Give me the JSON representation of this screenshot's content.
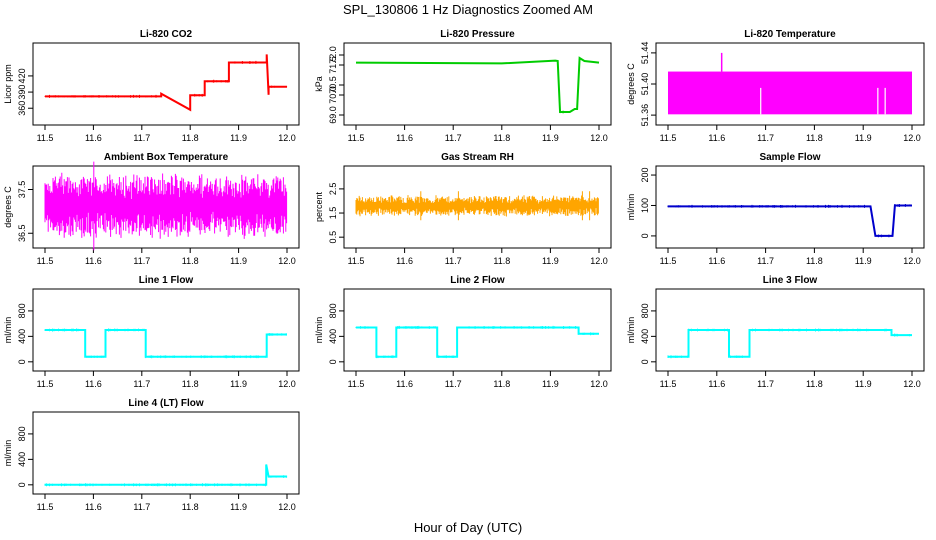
{
  "figure": {
    "title": "SPL_130806 1 Hz Diagnostics Zoomed AM",
    "xlabel": "Hour of Day (UTC)"
  },
  "chart_data": [
    {
      "type": "line",
      "title": "Li-820 CO2",
      "xlabel": "",
      "ylabel": "Licor ppm",
      "color": "#ff0000",
      "xlim": [
        11.5,
        12.0
      ],
      "ylim": [
        340,
        470
      ],
      "xticks": [
        "11.5",
        "11.6",
        "11.7",
        "11.8",
        "11.9",
        "12.0"
      ],
      "yticks": [
        "360",
        "390",
        "420"
      ],
      "series": [
        {
          "x": [
            11.5,
            11.74,
            11.74,
            11.8,
            11.8,
            11.83,
            11.83,
            11.88,
            11.88,
            11.958,
            11.958,
            11.962,
            11.962,
            12.0
          ],
          "y": [
            382,
            382,
            387,
            357,
            384,
            384,
            410,
            410,
            445,
            445,
            460,
            385,
            400,
            400
          ]
        }
      ]
    },
    {
      "type": "line",
      "title": "Li-820 Pressure",
      "xlabel": "",
      "ylabel": "kPa",
      "color": "#00cc00",
      "xlim": [
        11.5,
        12.0
      ],
      "ylim": [
        68.8,
        72.3
      ],
      "xticks": [
        "11.5",
        "11.6",
        "11.7",
        "11.8",
        "11.9",
        "12.0"
      ],
      "yticks": [
        "69.0",
        "70.0",
        "70.5",
        "71.5",
        "72.0"
      ],
      "series": [
        {
          "x": [
            11.5,
            11.8,
            11.91,
            11.915,
            11.92,
            11.92,
            11.94,
            11.95,
            11.955,
            11.96,
            11.97,
            12.0
          ],
          "y": [
            71.62,
            71.58,
            71.72,
            71.7,
            69.1,
            69.15,
            69.15,
            69.3,
            69.3,
            71.85,
            71.7,
            71.62
          ]
        }
      ]
    },
    {
      "type": "area",
      "title": "Li-820 Temperature",
      "xlabel": "",
      "ylabel": "degrees C",
      "color": "#ff00ff",
      "xlim": [
        11.5,
        12.0
      ],
      "ylim": [
        51.355,
        51.445
      ],
      "xticks": [
        "11.5",
        "11.6",
        "11.7",
        "11.8",
        "11.9",
        "12.0"
      ],
      "yticks": [
        "51.36",
        "51.40",
        "51.44"
      ],
      "series": [
        {
          "x": [
            11.5,
            11.7,
            11.9,
            12.0
          ],
          "y_low": [
            51.361,
            51.361,
            51.361,
            51.361
          ],
          "y_high": [
            51.416,
            51.416,
            51.416,
            51.416
          ]
        }
      ],
      "spikes": [
        {
          "x": 11.61,
          "y": 51.44
        }
      ]
    },
    {
      "type": "area",
      "title": "Ambient Box Temperature",
      "xlabel": "",
      "ylabel": "degrees C",
      "color": "#ff00ff",
      "xlim": [
        11.5,
        12.0
      ],
      "ylim": [
        36.3,
        37.9
      ],
      "xticks": [
        "11.5",
        "11.6",
        "11.7",
        "11.8",
        "11.9",
        "12.0"
      ],
      "yticks": [
        "36.5",
        "37.5"
      ],
      "series": [
        {
          "x": [
            11.5,
            11.75,
            12.0
          ],
          "y_low": [
            36.45,
            36.45,
            36.45
          ],
          "y_high": [
            37.8,
            37.8,
            37.8
          ]
        }
      ]
    },
    {
      "type": "area",
      "title": "Gas Stream RH",
      "xlabel": "",
      "ylabel": "percent",
      "color": "#ffa500",
      "xlim": [
        11.5,
        12.0
      ],
      "ylim": [
        0.3,
        3.2
      ],
      "xticks": [
        "11.5",
        "11.6",
        "11.7",
        "11.8",
        "11.9",
        "12.0"
      ],
      "yticks": [
        "0.5",
        "1.5",
        "2.5"
      ],
      "series": [
        {
          "x": [
            11.5,
            11.75,
            12.0
          ],
          "y_low": [
            1.4,
            1.4,
            1.4
          ],
          "y_high": [
            2.2,
            2.2,
            2.2
          ]
        }
      ]
    },
    {
      "type": "line",
      "title": "Sample Flow",
      "xlabel": "",
      "ylabel": "ml/min",
      "color": "#0000cc",
      "xlim": [
        11.5,
        12.0
      ],
      "ylim": [
        -20,
        210
      ],
      "xticks": [
        "11.5",
        "11.6",
        "11.7",
        "11.8",
        "11.9",
        "12.0"
      ],
      "yticks": [
        "0",
        "100",
        "200"
      ],
      "series": [
        {
          "x": [
            11.5,
            11.915,
            11.925,
            11.96,
            11.965,
            12.0
          ],
          "y": [
            97,
            97,
            0,
            0,
            100,
            100
          ]
        }
      ]
    },
    {
      "type": "line",
      "title": "Line 1 Flow",
      "xlabel": "",
      "ylabel": "ml/min",
      "color": "#00ffff",
      "xlim": [
        11.5,
        12.0
      ],
      "ylim": [
        -50,
        1050
      ],
      "xticks": [
        "11.5",
        "11.6",
        "11.7",
        "11.8",
        "11.9",
        "12.0"
      ],
      "yticks": [
        "0",
        "400",
        "800"
      ],
      "series": [
        {
          "x": [
            11.5,
            11.583,
            11.583,
            11.625,
            11.625,
            11.708,
            11.708,
            11.958,
            11.958,
            12.0
          ],
          "y": [
            500,
            500,
            80,
            80,
            500,
            500,
            80,
            80,
            430,
            430
          ]
        }
      ]
    },
    {
      "type": "line",
      "title": "Line 2 Flow",
      "xlabel": "",
      "ylabel": "ml/min",
      "color": "#00ffff",
      "xlim": [
        11.5,
        12.0
      ],
      "ylim": [
        -50,
        1050
      ],
      "xticks": [
        "11.5",
        "11.6",
        "11.7",
        "11.8",
        "11.9",
        "12.0"
      ],
      "yticks": [
        "0",
        "400",
        "800"
      ],
      "series": [
        {
          "x": [
            11.5,
            11.542,
            11.542,
            11.583,
            11.583,
            11.667,
            11.667,
            11.708,
            11.708,
            11.958,
            11.958,
            12.0
          ],
          "y": [
            540,
            540,
            80,
            80,
            540,
            540,
            80,
            80,
            540,
            540,
            440,
            440
          ]
        }
      ]
    },
    {
      "type": "line",
      "title": "Line 3 Flow",
      "xlabel": "",
      "ylabel": "ml/min",
      "color": "#00ffff",
      "xlim": [
        11.5,
        12.0
      ],
      "ylim": [
        -50,
        1050
      ],
      "xticks": [
        "11.5",
        "11.6",
        "11.7",
        "11.8",
        "11.9",
        "12.0"
      ],
      "yticks": [
        "0",
        "400",
        "800"
      ],
      "series": [
        {
          "x": [
            11.5,
            11.542,
            11.542,
            11.625,
            11.625,
            11.667,
            11.667,
            11.958,
            11.958,
            12.0
          ],
          "y": [
            80,
            80,
            500,
            500,
            80,
            80,
            500,
            500,
            420,
            420
          ]
        }
      ]
    },
    {
      "type": "line",
      "title": "Line 4 (LT) Flow",
      "xlabel": "",
      "ylabel": "ml/min",
      "color": "#00ffff",
      "xlim": [
        11.5,
        12.0
      ],
      "ylim": [
        -50,
        1050
      ],
      "xticks": [
        "11.5",
        "11.6",
        "11.7",
        "11.8",
        "11.9",
        "12.0"
      ],
      "yticks": [
        "0",
        "400",
        "800"
      ],
      "series": [
        {
          "x": [
            11.5,
            11.957,
            11.957,
            11.962,
            11.962,
            12.0
          ],
          "y": [
            0,
            0,
            320,
            130,
            130,
            130
          ]
        }
      ]
    }
  ]
}
